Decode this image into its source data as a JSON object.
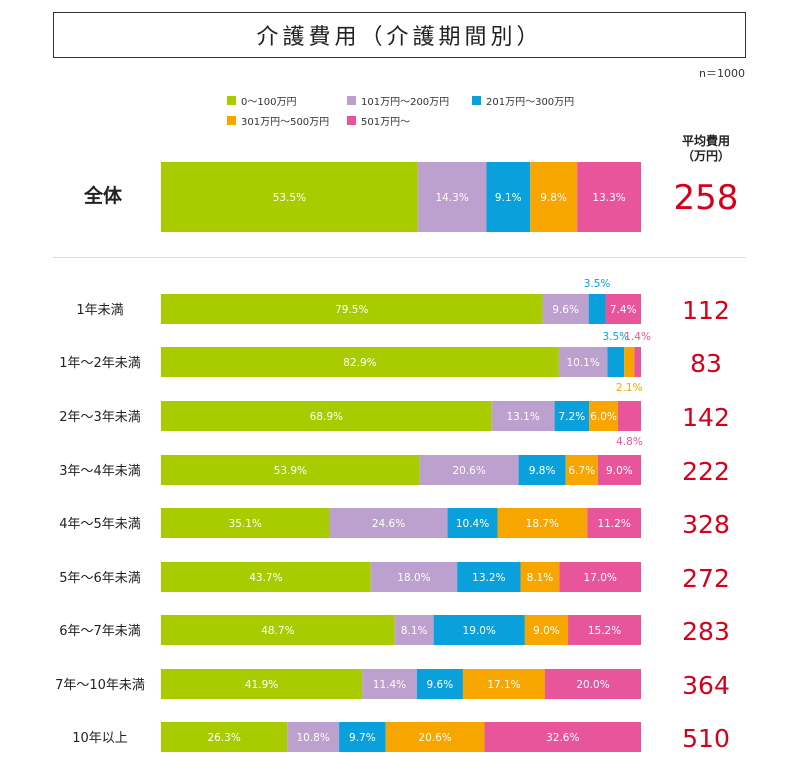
{
  "title": "介護費用（介護期間別）",
  "sample_note": "n＝1000",
  "avg_header": {
    "line1": "平均費用",
    "line2": "（万円）"
  },
  "colors": {
    "c1": "#a8cc00",
    "c2": "#bca0cd",
    "c3": "#0aa0dc",
    "c4": "#f7a600",
    "c5": "#e8559a",
    "avg": "#d6001c"
  },
  "chart_data": {
    "type": "bar",
    "orientation": "horizontal",
    "stacked": true,
    "unit": "%",
    "categories": [
      "全体",
      "1年未満",
      "1年～2年未満",
      "2年～3年未満",
      "3年～4年未満",
      "4年～5年未満",
      "5年～6年未満",
      "6年～7年未満",
      "7年～10年未満",
      "10年以上"
    ],
    "series": [
      {
        "name": "0～100万円",
        "values": [
          53.5,
          79.5,
          82.9,
          68.9,
          53.9,
          35.1,
          43.7,
          48.7,
          41.9,
          26.3
        ]
      },
      {
        "name": "101万円～200万円",
        "values": [
          14.3,
          9.6,
          10.1,
          13.1,
          20.6,
          24.6,
          18.0,
          8.1,
          11.4,
          10.8
        ]
      },
      {
        "name": "201万円～300万円",
        "values": [
          9.1,
          3.5,
          3.5,
          7.2,
          9.8,
          10.4,
          13.2,
          19.0,
          9.6,
          9.7
        ]
      },
      {
        "name": "301万円～500万円",
        "values": [
          9.8,
          0.0,
          2.1,
          6.0,
          6.7,
          18.7,
          8.1,
          9.0,
          17.1,
          20.6
        ]
      },
      {
        "name": "501万円～",
        "values": [
          13.3,
          7.4,
          1.4,
          4.8,
          9.0,
          11.2,
          17.0,
          15.2,
          20.0,
          32.6
        ]
      }
    ],
    "average_cost": [
      258,
      112,
      83,
      142,
      222,
      328,
      272,
      283,
      364,
      510
    ],
    "legend_position": "top"
  }
}
